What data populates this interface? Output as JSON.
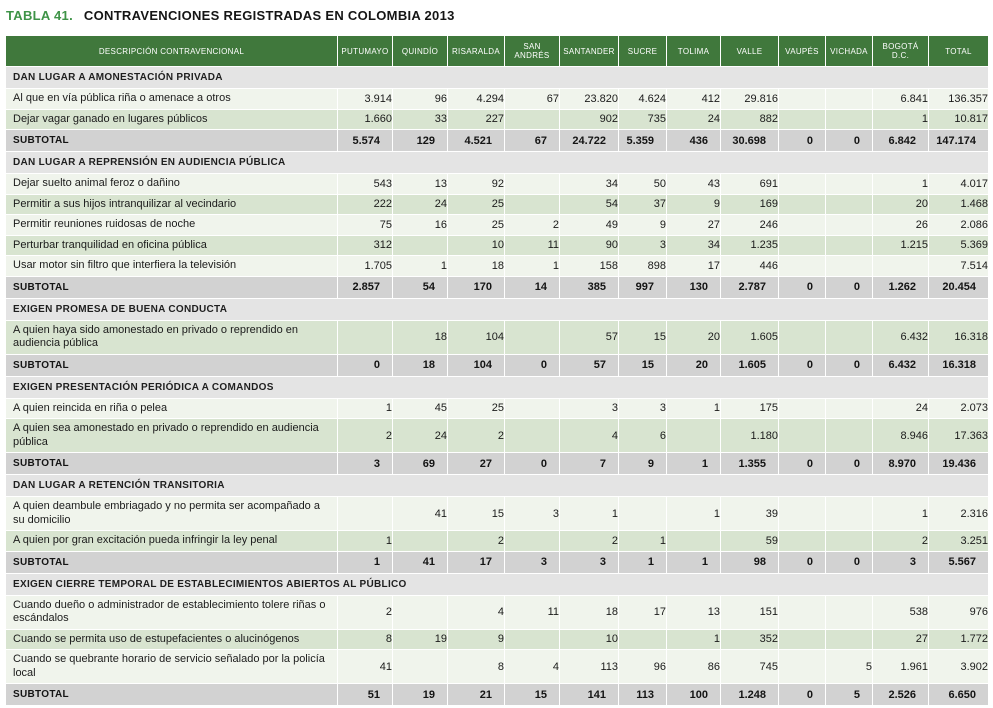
{
  "title": {
    "label": "TABLA 41.",
    "text": "CONTRAVENCIONES REGISTRADAS EN COLOMBIA 2013"
  },
  "colors": {
    "title_green": "#3e9347",
    "header_bg": "#40783c",
    "header_fg": "#ffffff",
    "section_bg": "#e4e4e4",
    "subtotal_bg": "#d2d2d2",
    "row_light": "#f0f4ec",
    "row_green": "#d8e4d0",
    "text_dark": "#1b1b1b"
  },
  "table": {
    "subtotal_label": "SUBTOTAL",
    "columns": [
      "DESCRIPCIÓN CONTRAVENCIONAL",
      "PUTUMAYO",
      "QUINDÍO",
      "RISARALDA",
      "SAN ANDRÉS",
      "SANTANDER",
      "SUCRE",
      "TOLIMA",
      "VALLE",
      "VAUPÉS",
      "VICHADA",
      "BOGOTÁ D.C.",
      "TOTAL"
    ],
    "sections": [
      {
        "header": "DAN LUGAR A AMONESTACIÓN PRIVADA",
        "rows": [
          {
            "label": "Al que en vía pública riña o amenace a otros",
            "values": [
              "3.914",
              "96",
              "4.294",
              "67",
              "23.820",
              "4.624",
              "412",
              "29.816",
              "",
              "",
              "6.841",
              "136.357"
            ]
          },
          {
            "label": "Dejar vagar ganado en lugares públicos",
            "values": [
              "1.660",
              "33",
              "227",
              "",
              "902",
              "735",
              "24",
              "882",
              "",
              "",
              "1",
              "10.817"
            ]
          }
        ],
        "subtotal": [
          "5.574",
          "129",
          "4.521",
          "67",
          "24.722",
          "5.359",
          "436",
          "30.698",
          "0",
          "0",
          "6.842",
          "147.174"
        ]
      },
      {
        "header": "DAN LUGAR A REPRENSIÓN EN AUDIENCIA PÚBLICA",
        "rows": [
          {
            "label": "Dejar suelto animal feroz o dañino",
            "values": [
              "543",
              "13",
              "92",
              "",
              "34",
              "50",
              "43",
              "691",
              "",
              "",
              "1",
              "4.017"
            ]
          },
          {
            "label": "Permitir a sus hijos intranquilizar al vecindario",
            "values": [
              "222",
              "24",
              "25",
              "",
              "54",
              "37",
              "9",
              "169",
              "",
              "",
              "20",
              "1.468"
            ]
          },
          {
            "label": "Permitir reuniones ruidosas de noche",
            "values": [
              "75",
              "16",
              "25",
              "2",
              "49",
              "9",
              "27",
              "246",
              "",
              "",
              "26",
              "2.086"
            ]
          },
          {
            "label": "Perturbar tranquilidad en oficina pública",
            "values": [
              "312",
              "",
              "10",
              "11",
              "90",
              "3",
              "34",
              "1.235",
              "",
              "",
              "1.215",
              "5.369"
            ]
          },
          {
            "label": "Usar motor sin filtro que interfiera la televisión",
            "values": [
              "1.705",
              "1",
              "18",
              "1",
              "158",
              "898",
              "17",
              "446",
              "",
              "",
              "",
              "7.514"
            ]
          }
        ],
        "subtotal": [
          "2.857",
          "54",
          "170",
          "14",
          "385",
          "997",
          "130",
          "2.787",
          "0",
          "0",
          "1.262",
          "20.454"
        ]
      },
      {
        "header": "EXIGEN PROMESA DE BUENA CONDUCTA",
        "rows": [
          {
            "label": "A quien haya sido amonestado en privado o reprendido en audiencia pública",
            "values": [
              "",
              "18",
              "104",
              "",
              "57",
              "15",
              "20",
              "1.605",
              "",
              "",
              "6.432",
              "16.318"
            ]
          }
        ],
        "subtotal": [
          "0",
          "18",
          "104",
          "0",
          "57",
          "15",
          "20",
          "1.605",
          "0",
          "0",
          "6.432",
          "16.318"
        ]
      },
      {
        "header": "EXIGEN PRESENTACIÓN PERIÓDICA A COMANDOS",
        "rows": [
          {
            "label": "A quien reincida en riña o pelea",
            "values": [
              "1",
              "45",
              "25",
              "",
              "3",
              "3",
              "1",
              "175",
              "",
              "",
              "24",
              "2.073"
            ]
          },
          {
            "label": "A quien sea amonestado en privado o reprendido en audiencia pública",
            "values": [
              "2",
              "24",
              "2",
              "",
              "4",
              "6",
              "",
              "1.180",
              "",
              "",
              "8.946",
              "17.363"
            ]
          }
        ],
        "subtotal": [
          "3",
          "69",
          "27",
          "0",
          "7",
          "9",
          "1",
          "1.355",
          "0",
          "0",
          "8.970",
          "19.436"
        ]
      },
      {
        "header": "DAN LUGAR A RETENCIÓN TRANSITORIA",
        "rows": [
          {
            "label": "A quien deambule embriagado y no permita ser acompañado a su domicilio",
            "values": [
              "",
              "41",
              "15",
              "3",
              "1",
              "",
              "1",
              "39",
              "",
              "",
              "1",
              "2.316"
            ]
          },
          {
            "label": "A quien por gran excitación pueda infringir la ley penal",
            "values": [
              "1",
              "",
              "2",
              "",
              "2",
              "1",
              "",
              "59",
              "",
              "",
              "2",
              "3.251"
            ]
          }
        ],
        "subtotal": [
          "1",
          "41",
          "17",
          "3",
          "3",
          "1",
          "1",
          "98",
          "0",
          "0",
          "3",
          "5.567"
        ]
      },
      {
        "header": "EXIGEN CIERRE TEMPORAL DE ESTABLECIMIENTOS ABIERTOS AL PÚBLICO",
        "rows": [
          {
            "label": "Cuando dueño o administrador de establecimiento tolere riñas o escándalos",
            "values": [
              "2",
              "",
              "4",
              "11",
              "18",
              "17",
              "13",
              "151",
              "",
              "",
              "538",
              "976"
            ]
          },
          {
            "label": "Cuando se permita uso de estupefacientes o alucinógenos",
            "values": [
              "8",
              "19",
              "9",
              "",
              "10",
              "",
              "1",
              "352",
              "",
              "",
              "27",
              "1.772"
            ]
          },
          {
            "label": "Cuando se quebrante horario de servicio señalado por la policía local",
            "values": [
              "41",
              "",
              "8",
              "4",
              "113",
              "96",
              "86",
              "745",
              "",
              "5",
              "1.961",
              "3.902"
            ]
          }
        ],
        "subtotal": [
          "51",
          "19",
          "21",
          "15",
          "141",
          "113",
          "100",
          "1.248",
          "0",
          "5",
          "2.526",
          "6.650"
        ]
      }
    ]
  }
}
